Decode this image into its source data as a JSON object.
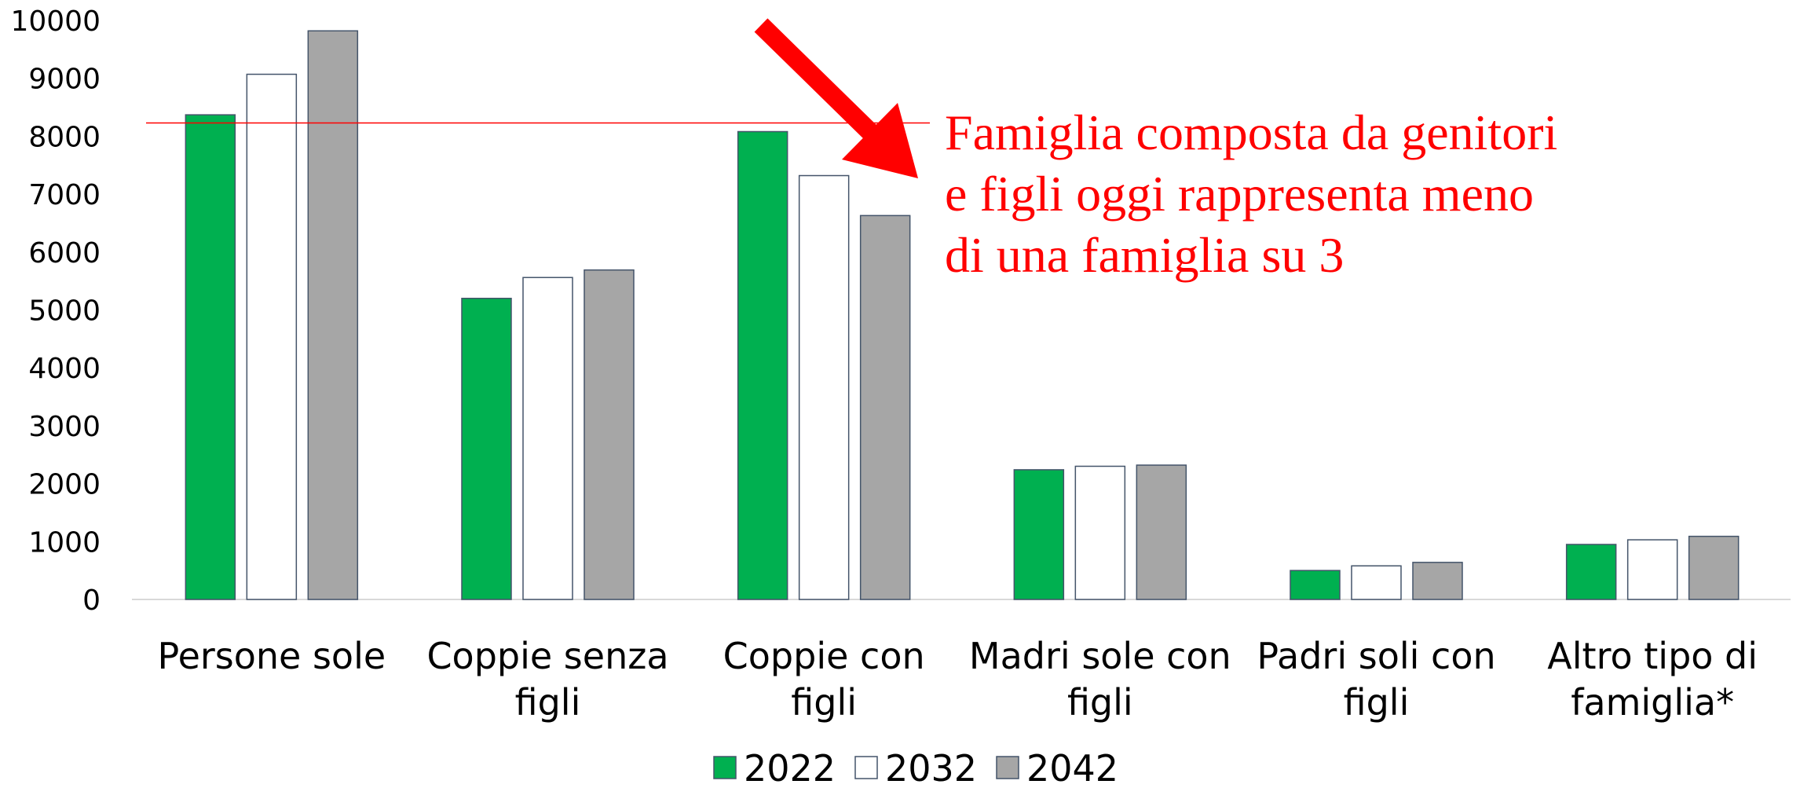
{
  "chart_data": {
    "type": "bar",
    "categories": [
      "Persone sole",
      "Coppie senza figli",
      "Coppie con figli",
      "Madri sole con figli",
      "Padri soli con figli",
      "Altro tipo di famiglia*"
    ],
    "series": [
      {
        "name": "2022",
        "color": "#00b050",
        "values": [
          8370,
          5200,
          8080,
          2240,
          500,
          950
        ]
      },
      {
        "name": "2032",
        "color": "#ffffff",
        "values": [
          9070,
          5560,
          7320,
          2300,
          580,
          1030
        ]
      },
      {
        "name": "2042",
        "color": "#a6a6a6",
        "values": [
          9820,
          5690,
          6630,
          2320,
          640,
          1090
        ]
      }
    ],
    "ylim": [
      0,
      10000
    ],
    "yticks": [
      0,
      1000,
      2000,
      3000,
      4000,
      5000,
      6000,
      7000,
      8000,
      9000,
      10000
    ],
    "reference_line": {
      "value": 8230,
      "color": "#ff0000"
    },
    "annotation": {
      "color": "#ff0000",
      "lines": [
        "Famiglia composta da genitori",
        "e figli oggi rappresenta meno",
        "di una famiglia su 3"
      ]
    },
    "legend": "bottom"
  }
}
